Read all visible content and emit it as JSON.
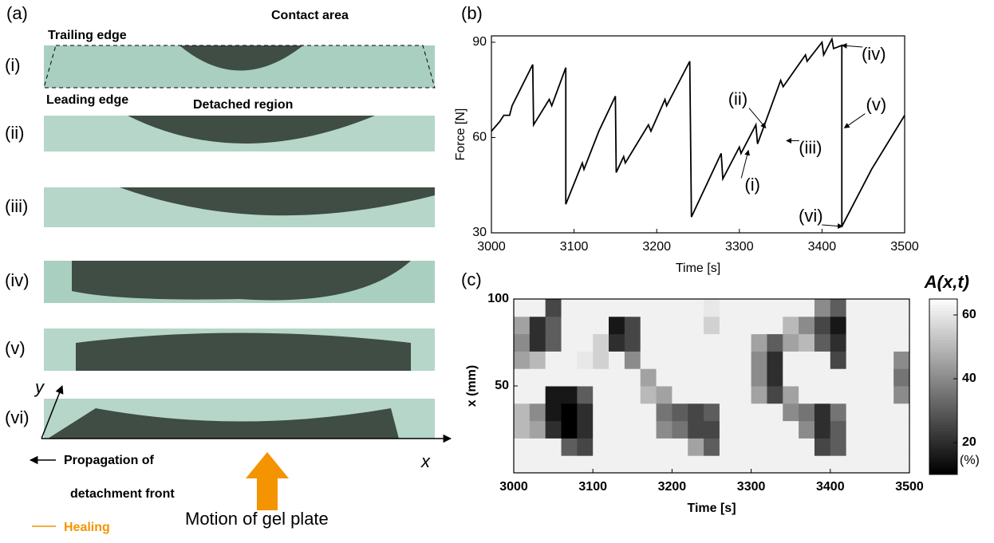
{
  "panel_a": {
    "label": "(a)",
    "trailing_edge": "Trailing edge",
    "contact_area": "Contact area",
    "leading_edge": "Leading edge",
    "detached_region": "Detached region",
    "strips": [
      "(i)",
      "(ii)",
      "(iii)",
      "(iv)",
      "(v)",
      "(vi)"
    ],
    "y_axis": "y",
    "x_axis": "x",
    "legend_propagation": [
      "Propagation of",
      "detachment front"
    ],
    "legend_healing": "Healing",
    "motion": "Motion of gel plate"
  },
  "chart_data": [
    {
      "type": "line",
      "panel": "(b)",
      "xlabel": "Time [s]",
      "ylabel": "Force [N]",
      "xlim": [
        3000,
        3500
      ],
      "ylim": [
        30,
        92
      ],
      "xticks": [
        3000,
        3100,
        3200,
        3300,
        3400,
        3500
      ],
      "yticks": [
        30,
        60,
        90
      ],
      "series": [
        {
          "color": "#000000",
          "x": [
            3000,
            3010,
            3015,
            3022,
            3025,
            3050,
            3051,
            3070,
            3073,
            3090,
            3090,
            3110,
            3112,
            3130,
            3150,
            3151,
            3160,
            3162,
            3190,
            3193,
            3210,
            3212,
            3240,
            3242,
            3278,
            3280,
            3300,
            3302,
            3320,
            3322,
            3350,
            3353,
            3380,
            3382,
            3400,
            3402,
            3412,
            3414,
            3424,
            3424,
            3460,
            3500
          ],
          "values": [
            62,
            65,
            67,
            67,
            70,
            83,
            64,
            72,
            70,
            82,
            39,
            52,
            50,
            62,
            73,
            49,
            54,
            52,
            64,
            62,
            72,
            70,
            84,
            35,
            55,
            47,
            57,
            55,
            64,
            58,
            78,
            76,
            86,
            84,
            90,
            86,
            91,
            88,
            89,
            32,
            50,
            67
          ]
        }
      ],
      "annotations": [
        {
          "label": "(i)",
          "x": 3311,
          "y": 56
        },
        {
          "label": "(ii)",
          "x": 3332,
          "y": 63
        },
        {
          "label": "(iii)",
          "x": 3357,
          "y": 59
        },
        {
          "label": "(iv)",
          "x": 3424,
          "y": 89
        },
        {
          "label": "(v)",
          "x": 3427,
          "y": 63
        },
        {
          "label": "(vi)",
          "x": 3425,
          "y": 32
        }
      ]
    },
    {
      "type": "heatmap",
      "panel": "(c)",
      "xlabel": "Time [s]",
      "ylabel": "x (mm)",
      "xlim": [
        3000,
        3500
      ],
      "ylim": [
        0,
        100
      ],
      "xticks": [
        3000,
        3100,
        3200,
        3300,
        3400,
        3500
      ],
      "yticks": [
        50,
        100
      ],
      "colorbar_title": "A(x,t)",
      "colorbar_unit": "(%)",
      "zlim": [
        10,
        65
      ],
      "zticks": [
        20,
        40,
        60
      ],
      "z": [
        [
          62,
          62,
          50,
          50,
          62,
          62,
          45,
          40,
          45,
          62
        ],
        [
          62,
          62,
          45,
          40,
          62,
          62,
          50,
          20,
          20,
          62
        ],
        [
          62,
          62,
          20,
          15,
          15,
          62,
          62,
          30,
          30,
          25
        ],
        [
          62,
          30,
          10,
          10,
          15,
          62,
          62,
          62,
          62,
          62
        ],
        [
          62,
          25,
          20,
          20,
          30,
          62,
          60,
          62,
          62,
          62
        ],
        [
          62,
          62,
          62,
          62,
          62,
          62,
          55,
          55,
          62,
          62
        ],
        [
          62,
          62,
          62,
          62,
          62,
          62,
          62,
          20,
          15,
          62
        ],
        [
          62,
          62,
          62,
          62,
          62,
          62,
          40,
          25,
          25,
          62
        ],
        [
          62,
          62,
          62,
          62,
          50,
          45,
          62,
          62,
          62,
          62
        ],
        [
          62,
          62,
          40,
          35,
          45,
          62,
          62,
          62,
          62,
          62
        ],
        [
          62,
          62,
          35,
          30,
          62,
          62,
          62,
          62,
          62,
          62
        ],
        [
          62,
          45,
          25,
          25,
          62,
          62,
          62,
          62,
          62,
          62
        ],
        [
          62,
          30,
          25,
          30,
          62,
          62,
          62,
          62,
          55,
          60
        ],
        [
          62,
          62,
          62,
          62,
          62,
          62,
          62,
          62,
          62,
          62
        ],
        [
          62,
          62,
          62,
          62,
          62,
          62,
          62,
          62,
          62,
          62
        ],
        [
          62,
          62,
          62,
          62,
          45,
          40,
          40,
          45,
          62,
          62
        ],
        [
          62,
          62,
          62,
          62,
          25,
          20,
          20,
          30,
          62,
          62
        ],
        [
          62,
          62,
          62,
          40,
          45,
          62,
          62,
          45,
          50,
          62
        ],
        [
          62,
          62,
          40,
          35,
          62,
          62,
          62,
          50,
          40,
          62
        ],
        [
          62,
          25,
          20,
          20,
          62,
          62,
          62,
          30,
          25,
          40
        ],
        [
          62,
          30,
          30,
          35,
          62,
          62,
          25,
          20,
          15,
          30
        ],
        [
          62,
          62,
          62,
          62,
          62,
          62,
          62,
          62,
          62,
          62
        ],
        [
          62,
          62,
          62,
          62,
          62,
          62,
          62,
          62,
          62,
          62
        ],
        [
          62,
          62,
          62,
          62,
          62,
          62,
          62,
          62,
          62,
          62
        ],
        [
          62,
          62,
          62,
          62,
          40,
          35,
          40,
          62,
          62,
          62
        ]
      ]
    }
  ]
}
